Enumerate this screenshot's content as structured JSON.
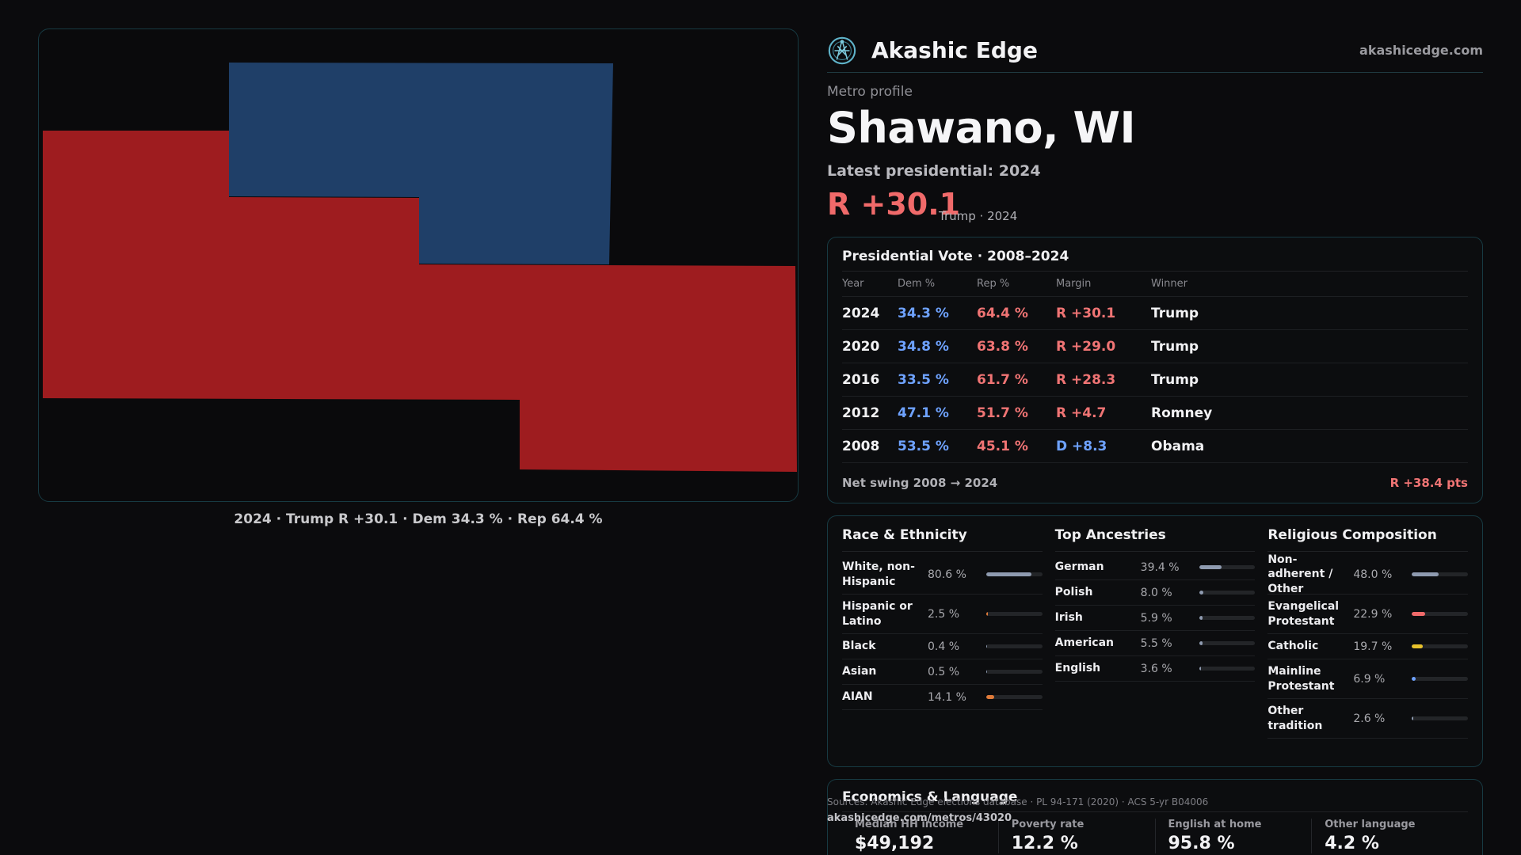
{
  "map": {
    "caption": "2024 · Trump R +30.1 · Dem 34.3 % · Rep 64.4 %",
    "colors": {
      "rep": "#9e1c1f",
      "dem": "#1f3f68"
    }
  },
  "header": {
    "brand": "Akashic Edge",
    "site": "akashicedge.com",
    "logo_icon": "compass-logo-icon"
  },
  "profile": {
    "kicker": "Metro profile",
    "title": "Shawano, WI",
    "latest_label": "Latest presidential: 2024",
    "margin": "R +30.1",
    "margin_sub": "Trump · 2024"
  },
  "vote_table": {
    "title": "Presidential Vote · 2008–2024",
    "headers": {
      "year": "Year",
      "dem": "Dem %",
      "rep": "Rep %",
      "margin": "Margin",
      "winner": "Winner"
    },
    "rows": [
      {
        "year": "2024",
        "dem": "34.3 %",
        "rep": "64.4 %",
        "margin": "R +30.1",
        "winner": "Trump",
        "party": "R"
      },
      {
        "year": "2020",
        "dem": "34.8 %",
        "rep": "63.8 %",
        "margin": "R +29.0",
        "winner": "Trump",
        "party": "R"
      },
      {
        "year": "2016",
        "dem": "33.5 %",
        "rep": "61.7 %",
        "margin": "R +28.3",
        "winner": "Trump",
        "party": "R"
      },
      {
        "year": "2012",
        "dem": "47.1 %",
        "rep": "51.7 %",
        "margin": "R +4.7",
        "winner": "Romney",
        "party": "R"
      },
      {
        "year": "2008",
        "dem": "53.5 %",
        "rep": "45.1 %",
        "margin": "D +8.3",
        "winner": "Obama",
        "party": "D"
      }
    ],
    "swing_label": "Net swing 2008 → 2024",
    "swing_value": "R +38.4 pts",
    "colors": {
      "R": "#f07474",
      "D": "#6ea2ff"
    }
  },
  "race": {
    "title": "Race & Ethnicity",
    "items": [
      {
        "label": "White, non-Hispanic",
        "value": "80.6 %",
        "pct": 80.6,
        "color": "#8f9bb0"
      },
      {
        "label": "Hispanic or Latino",
        "value": "2.5 %",
        "pct": 2.5,
        "color": "#e07b39"
      },
      {
        "label": "Black",
        "value": "0.4 %",
        "pct": 0.4,
        "color": "#8f9bb0"
      },
      {
        "label": "Asian",
        "value": "0.5 %",
        "pct": 0.5,
        "color": "#8f9bb0"
      },
      {
        "label": "AIAN",
        "value": "14.1 %",
        "pct": 14.1,
        "color": "#e07b39"
      }
    ]
  },
  "ancestries": {
    "title": "Top Ancestries",
    "items": [
      {
        "label": "German",
        "value": "39.4 %",
        "pct": 39.4,
        "color": "#8f9bb0"
      },
      {
        "label": "Polish",
        "value": "8.0 %",
        "pct": 8.0,
        "color": "#8f9bb0"
      },
      {
        "label": "Irish",
        "value": "5.9 %",
        "pct": 5.9,
        "color": "#8f9bb0"
      },
      {
        "label": "American",
        "value": "5.5 %",
        "pct": 5.5,
        "color": "#8f9bb0"
      },
      {
        "label": "English",
        "value": "3.6 %",
        "pct": 3.6,
        "color": "#8f9bb0"
      }
    ]
  },
  "religion": {
    "title": "Religious Composition",
    "items": [
      {
        "label": "Non-adherent / Other",
        "value": "48.0 %",
        "pct": 48.0,
        "color": "#8f9bb0"
      },
      {
        "label": "Evangelical Protestant",
        "value": "22.9 %",
        "pct": 22.9,
        "color": "#f06a6a"
      },
      {
        "label": "Catholic",
        "value": "19.7 %",
        "pct": 19.7,
        "color": "#e8c22c"
      },
      {
        "label": "Mainline Protestant",
        "value": "6.9 %",
        "pct": 6.9,
        "color": "#6ea2ff"
      },
      {
        "label": "Other tradition",
        "value": "2.6 %",
        "pct": 2.6,
        "color": "#8f9bb0"
      }
    ]
  },
  "economics": {
    "title": "Economics & Language",
    "items": [
      {
        "label": "Median HH income",
        "value": "$49,192"
      },
      {
        "label": "Poverty rate",
        "value": "12.2 %"
      },
      {
        "label": "English at home",
        "value": "95.8 %"
      },
      {
        "label": "Other language",
        "value": "4.2 %"
      }
    ]
  },
  "footer": {
    "sources": "Sources: Akashic Edge elections database · PL 94-171 (2020) · ACS 5-yr B04006",
    "link": "akashicedge.com/metros/43020"
  }
}
